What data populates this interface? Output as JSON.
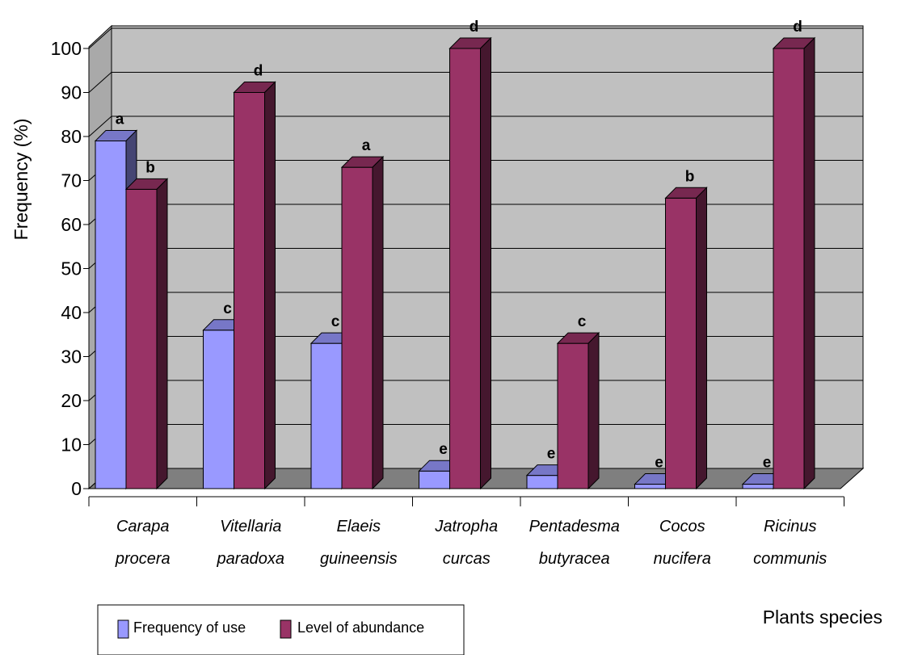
{
  "chart_data": {
    "type": "bar",
    "style": "3d-clustered-column",
    "categories": [
      [
        "Carapa",
        "procera"
      ],
      [
        "Vitellaria",
        "paradoxa"
      ],
      [
        "Elaeis",
        "guineensis"
      ],
      [
        "Jatropha",
        "curcas"
      ],
      [
        "Pentadesma",
        "butyracea"
      ],
      [
        "Cocos",
        "nucifera"
      ],
      [
        "Ricinus",
        "communis"
      ]
    ],
    "series": [
      {
        "name": "Frequency of use",
        "color": "#9999ff",
        "values": [
          79,
          36,
          33,
          4,
          3,
          1,
          1
        ],
        "labels": [
          "a",
          "c",
          "c",
          "e",
          "e",
          "e",
          "e"
        ]
      },
      {
        "name": "Level of abundance",
        "color": "#993366",
        "values": [
          68,
          90,
          73,
          100,
          33,
          66,
          100
        ],
        "labels": [
          "b",
          "d",
          "a",
          "d",
          "c",
          "b",
          "d"
        ]
      }
    ],
    "ylabel": "Frequency (%)",
    "xlabel": "Plants species",
    "ylim": [
      0,
      100
    ],
    "yticks": [
      "0",
      "10",
      "20",
      "30",
      "40",
      "50",
      "60",
      "70",
      "80",
      "90",
      "100"
    ],
    "grid": true,
    "legend_position": "bottom-left"
  }
}
